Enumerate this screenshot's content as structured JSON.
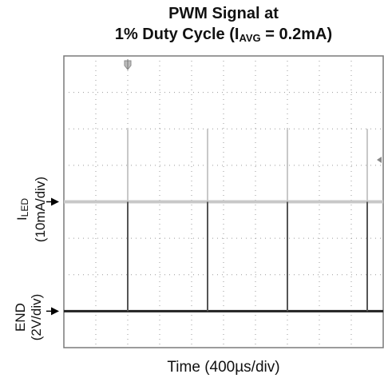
{
  "title": {
    "line1": "PWM Signal at",
    "line2_prefix": "1% Duty Cycle (I",
    "line2_sub": "AVG",
    "line2_suffix": " = 0.2mA)"
  },
  "xlabel": "Time (400µs/div)",
  "colors": {
    "iled_trace": "#c8c8c8",
    "end_trace": "#222222",
    "grid_dots": "#9a9a9a",
    "frame": "#7a7a7a"
  },
  "chart_data": {
    "type": "line",
    "title": "PWM Signal at 1% Duty Cycle (IAVG = 0.2mA)",
    "xlabel": "Time (400µs/div)",
    "x_unit": "µs",
    "xlim": [
      0,
      4000
    ],
    "y_divisions": 8,
    "grid": true,
    "series": [
      {
        "name": "ILED",
        "ylabel": "ILED (10mA/div)",
        "scale": "10mA/div",
        "baseline_mA": 0,
        "pulse_peak_mA": 20,
        "pulse_times_us": [
          800,
          1800,
          2800,
          3800
        ]
      },
      {
        "name": "END",
        "ylabel": "END (2V/div)",
        "scale": "2V/div",
        "baseline_V": 0,
        "pulse_peak_V": 6,
        "pulse_times_us": [
          800,
          1800,
          2800,
          3800
        ]
      }
    ]
  }
}
